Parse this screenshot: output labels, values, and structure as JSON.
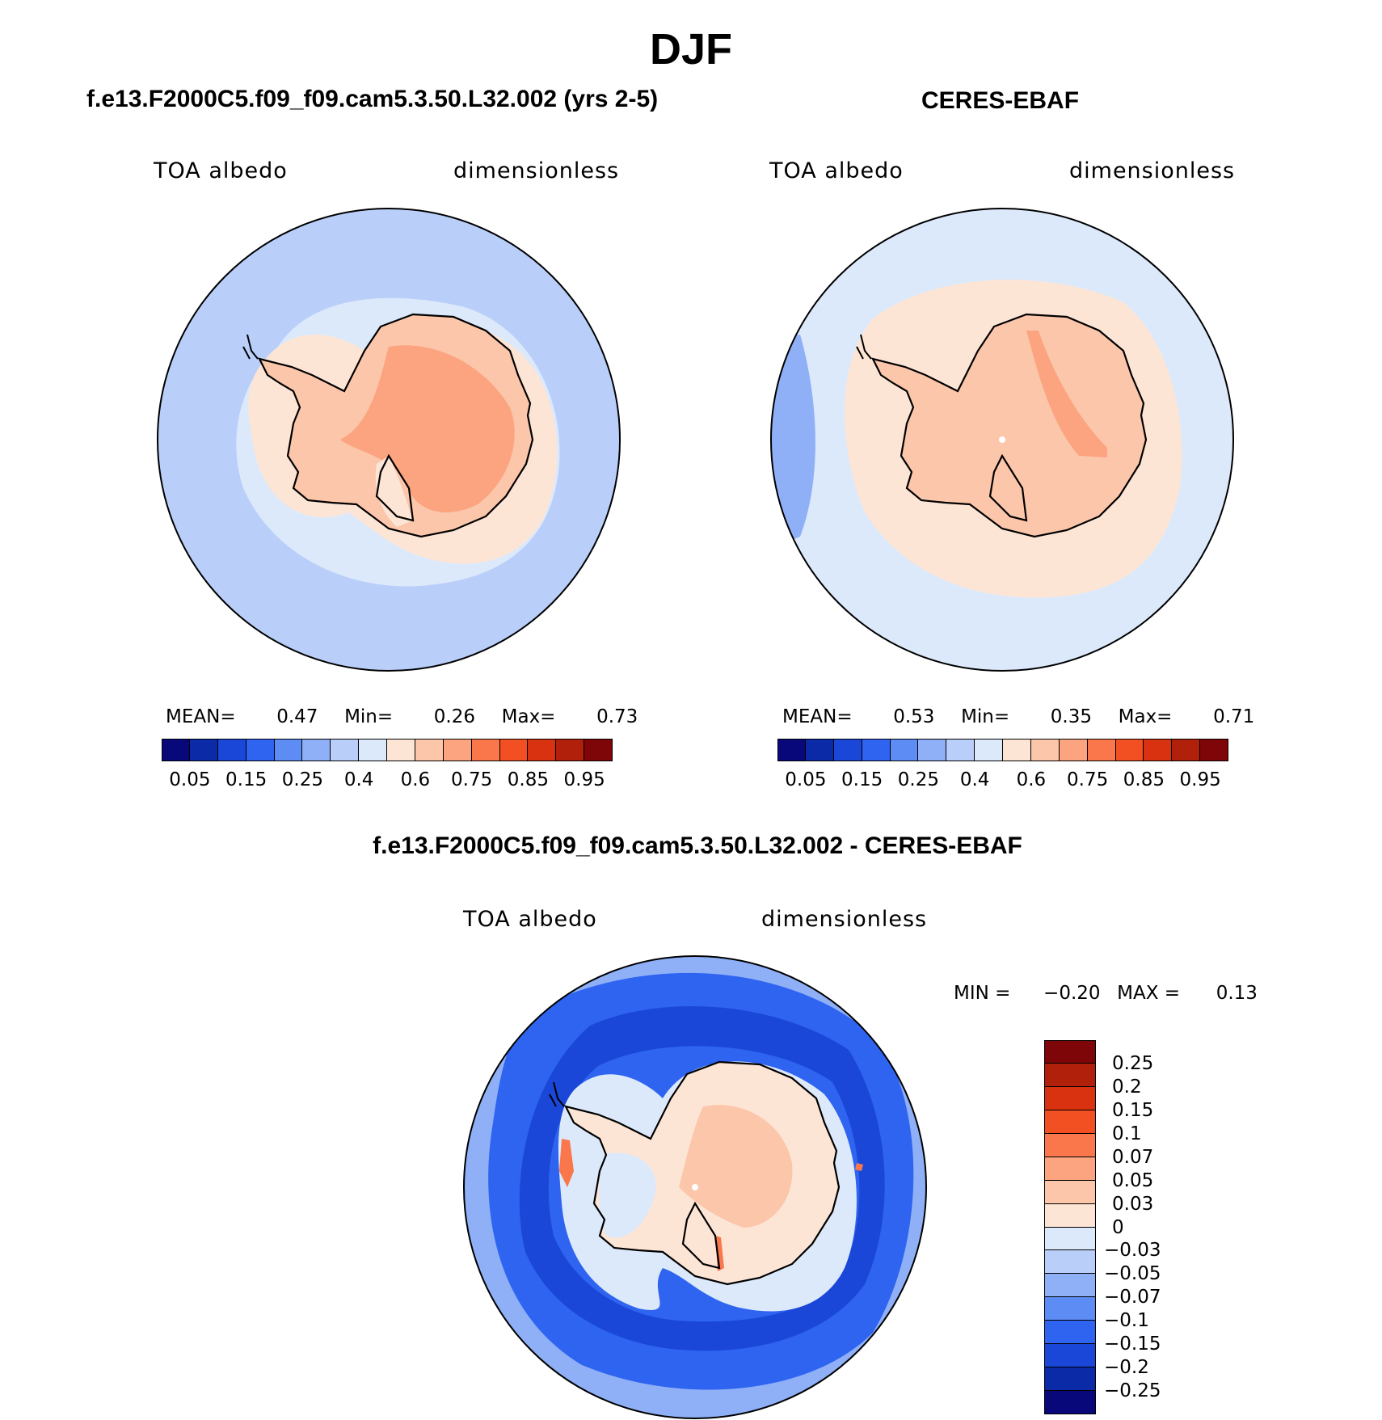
{
  "title": "DJF",
  "panels": {
    "model": {
      "case_title": "f.e13.F2000C5.f09_f09.cam5.3.50.L32.002 (yrs 2-5)",
      "variable": "TOA albedo",
      "units": "dimensionless",
      "stats": {
        "mean_label": "MEAN=",
        "mean": "0.47",
        "min_label": "Min=",
        "min": "0.26",
        "max_label": "Max=",
        "max": "0.73"
      }
    },
    "obs": {
      "case_title": "CERES-EBAF",
      "variable": "TOA albedo",
      "units": "dimensionless",
      "stats": {
        "mean_label": "MEAN=",
        "mean": "0.53",
        "min_label": "Min=",
        "min": "0.35",
        "max_label": "Max=",
        "max": "0.71"
      }
    },
    "diff": {
      "case_title": "f.e13.F2000C5.f09_f09.cam5.3.50.L32.002 - CERES-EBAF",
      "variable": "TOA albedo",
      "units": "dimensionless",
      "min_label": "MIN =",
      "min": "−0.20",
      "max_label": "MAX =",
      "max": "0.13"
    }
  },
  "colorbar_abs": {
    "labels": [
      "0.05",
      "0.15",
      "0.25",
      "0.4",
      "0.6",
      "0.75",
      "0.85",
      "0.95"
    ],
    "colors": [
      "#08087a",
      "#0b2aa8",
      "#1a47d8",
      "#2e64f0",
      "#5d8cf5",
      "#8fb0f7",
      "#b9cffa",
      "#dce9fb",
      "#fde5d6",
      "#fcc6ab",
      "#fba47f",
      "#f9774a",
      "#f24f23",
      "#d83210",
      "#b0200a",
      "#7e0608"
    ]
  },
  "colorbar_diff": {
    "labels": [
      "0.25",
      "0.2",
      "0.15",
      "0.1",
      "0.07",
      "0.05",
      "0.03",
      "0",
      "−0.03",
      "−0.05",
      "−0.07",
      "−0.1",
      "−0.15",
      "−0.2",
      "−0.25"
    ],
    "colors": [
      "#7e0608",
      "#b0200a",
      "#d83210",
      "#f24f23",
      "#f9774a",
      "#fba47f",
      "#fcc6ab",
      "#fde5d6",
      "#dce9fb",
      "#b9cffa",
      "#8fb0f7",
      "#5d8cf5",
      "#2e64f0",
      "#1a47d8",
      "#0b2aa8",
      "#08087a"
    ]
  },
  "map_fields": {
    "model": {
      "ocean": "#b9cffa",
      "ring": "#dce9fb",
      "coast_halo": "#fde5d6",
      "land": "#fcc6ab",
      "interior": "#fba47f"
    },
    "obs": {
      "ocean": "#dce9fb",
      "outer_ocean": "#8fb0f7",
      "ring": "#fde5d6",
      "land": "#fcc6ab"
    },
    "diff": {
      "outer": "#8fb0f7",
      "ocean": "#2e64f0",
      "band": "#1a47d8",
      "shelf": "#dce9fb",
      "land": "#fde5d6",
      "interior": "#fcc6ab",
      "hot": "#f9774a"
    }
  }
}
